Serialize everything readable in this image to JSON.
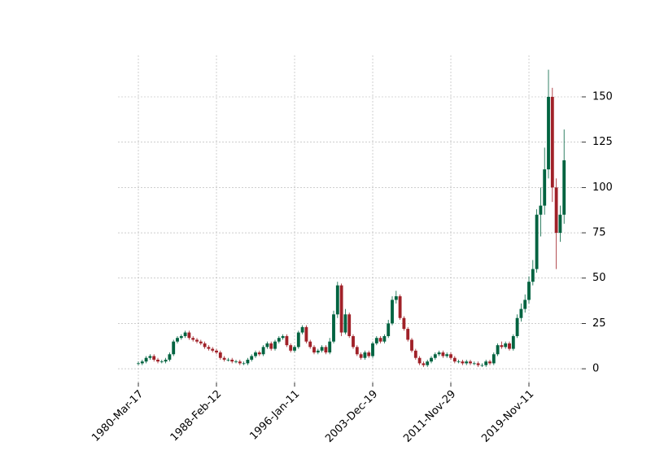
{
  "chart_data": {
    "type": "candlestick",
    "x": [
      0,
      100,
      200,
      300,
      400,
      500,
      600,
      700,
      800,
      900,
      1000,
      1100,
      1200,
      1300,
      1400,
      1500,
      1600,
      1700,
      1800,
      1900,
      2000,
      2100,
      2200,
      2300,
      2400,
      2500,
      2600,
      2700,
      2800,
      2900,
      3000,
      3100,
      3200,
      3300,
      3400,
      3500,
      3600,
      3700,
      3800,
      3900,
      4000,
      4100,
      4200,
      4300,
      4400,
      4500,
      4600,
      4700,
      4800,
      4900,
      5000,
      5100,
      5200,
      5300,
      5400,
      5500,
      5600,
      5700,
      5800,
      5900,
      6000,
      6100,
      6200,
      6300,
      6400,
      6500,
      6600,
      6700,
      6800,
      6900,
      7000,
      7100,
      7200,
      7300,
      7400,
      7500,
      7600,
      7700,
      7800,
      7900,
      8000,
      8100,
      8200,
      8300,
      8400,
      8500,
      8600,
      8700,
      8800,
      8900,
      9000,
      9100,
      9200,
      9300,
      9400,
      9500,
      9600,
      9700,
      9800,
      9900,
      10000,
      10100,
      10200,
      10300,
      10400,
      10500,
      10600,
      10700,
      10800,
      10900
    ],
    "open": [
      3,
      3,
      4,
      6,
      7,
      5,
      4,
      4,
      5,
      8,
      15,
      17,
      18,
      20,
      17,
      16,
      15,
      14,
      12,
      11,
      10,
      9,
      6,
      5,
      5,
      4,
      4,
      3,
      3,
      5,
      7,
      9,
      8,
      12,
      14,
      11,
      15,
      17,
      18,
      13,
      10,
      12,
      20,
      23,
      15,
      12,
      9,
      10,
      12,
      9,
      15,
      30,
      46,
      20,
      30,
      18,
      12,
      8,
      6,
      9,
      7,
      14,
      17,
      15,
      18,
      25,
      38,
      40,
      28,
      22,
      16,
      10,
      6,
      3,
      2,
      4,
      6,
      8,
      9,
      7,
      8,
      6,
      4,
      4,
      3,
      4,
      3,
      3,
      2,
      2,
      4,
      3,
      8,
      13,
      12,
      14,
      11,
      18,
      28,
      33,
      38,
      48,
      55,
      85,
      90,
      110,
      150,
      100,
      75,
      85
    ],
    "high": [
      4,
      5,
      7,
      8,
      8,
      6,
      5,
      6,
      9,
      16,
      18,
      19,
      21,
      21,
      18,
      17,
      16,
      15,
      13,
      12,
      11,
      10,
      7,
      6,
      6,
      5,
      5,
      4,
      6,
      8,
      10,
      10,
      13,
      15,
      15,
      16,
      18,
      19,
      19,
      14,
      13,
      21,
      24,
      24,
      16,
      13,
      11,
      13,
      13,
      17,
      32,
      48,
      47,
      33,
      31,
      19,
      13,
      9,
      10,
      10,
      15,
      18,
      18,
      19,
      27,
      40,
      43,
      41,
      29,
      23,
      17,
      11,
      7,
      4,
      5,
      7,
      9,
      10,
      10,
      9,
      9,
      7,
      5,
      5,
      5,
      5,
      4,
      4,
      3,
      5,
      5,
      9,
      14,
      15,
      15,
      15,
      19,
      30,
      36,
      41,
      51,
      60,
      88,
      100,
      122,
      165,
      155,
      105,
      90,
      132
    ],
    "low": [
      2,
      2,
      3,
      5,
      4,
      3,
      3,
      3,
      4,
      7,
      14,
      16,
      17,
      16,
      15,
      14,
      13,
      11,
      10,
      9,
      8,
      5,
      4,
      4,
      3,
      3,
      2,
      2,
      2,
      4,
      6,
      7,
      7,
      11,
      10,
      10,
      14,
      16,
      12,
      9,
      9,
      11,
      19,
      14,
      11,
      8,
      8,
      9,
      8,
      8,
      14,
      28,
      18,
      19,
      17,
      11,
      7,
      5,
      5,
      6,
      6,
      13,
      14,
      14,
      17,
      24,
      36,
      27,
      21,
      15,
      9,
      5,
      2,
      1,
      1,
      3,
      5,
      7,
      6,
      6,
      5,
      3,
      3,
      2,
      2,
      2,
      2,
      1,
      1,
      1,
      2,
      2,
      7,
      11,
      11,
      10,
      10,
      17,
      26,
      31,
      36,
      46,
      53,
      73,
      85,
      105,
      92,
      55,
      70,
      80
    ],
    "close": [
      3,
      4,
      6,
      7,
      5,
      4,
      4,
      5,
      8,
      15,
      17,
      18,
      20,
      17,
      16,
      15,
      14,
      12,
      11,
      10,
      9,
      6,
      5,
      5,
      4,
      4,
      3,
      3,
      5,
      7,
      9,
      8,
      12,
      14,
      11,
      15,
      17,
      18,
      13,
      10,
      12,
      20,
      23,
      15,
      12,
      9,
      10,
      12,
      9,
      15,
      30,
      46,
      20,
      30,
      18,
      12,
      8,
      6,
      9,
      7,
      14,
      17,
      15,
      18,
      25,
      38,
      40,
      28,
      22,
      16,
      10,
      6,
      3,
      2,
      4,
      6,
      8,
      9,
      7,
      8,
      6,
      4,
      4,
      3,
      4,
      3,
      3,
      2,
      2,
      4,
      3,
      8,
      13,
      12,
      14,
      11,
      18,
      28,
      33,
      38,
      48,
      55,
      85,
      90,
      110,
      150,
      100,
      75,
      85,
      115
    ],
    "up_color": "#006340",
    "down_color": "#a02128",
    "xlim": [
      -521,
      11354
    ],
    "xticks": [
      {
        "value": 0,
        "label": "1980-Mar-17"
      },
      {
        "value": 2000,
        "label": "1988-Feb-12"
      },
      {
        "value": 4000,
        "label": "1996-Jan-11"
      },
      {
        "value": 6000,
        "label": "2003-Dec-19"
      },
      {
        "value": 8000,
        "label": "2011-Nov-29"
      },
      {
        "value": 10000,
        "label": "2019-Nov-11"
      }
    ],
    "ylim": [
      -7.6,
      172.9
    ],
    "yticks": [
      0,
      25,
      50,
      75,
      100,
      125,
      150
    ],
    "grid": true
  }
}
